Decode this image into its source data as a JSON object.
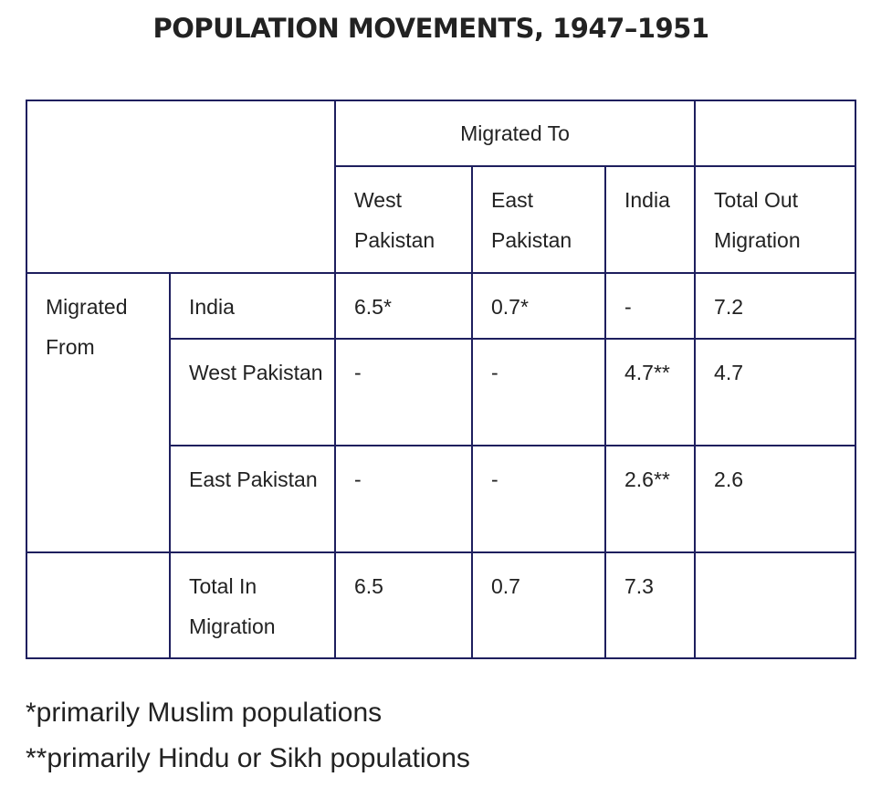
{
  "title": "POPULATION MOVEMENTS, 1947–1951",
  "table": {
    "migrated_to_label": "Migrated To",
    "migrated_from_label": "Migrated From",
    "columns": [
      "West Pakistan",
      "East Pakistan",
      "India",
      "Total Out Migration"
    ],
    "rows": [
      {
        "label": "India",
        "values": [
          "6.5*",
          "0.7*",
          "-",
          "7.2"
        ]
      },
      {
        "label": "West Pakistan",
        "values": [
          "-",
          "-",
          "4.7**",
          "4.7"
        ]
      },
      {
        "label": "East Pakistan",
        "values": [
          "-",
          "-",
          "2.6**",
          "2.6"
        ]
      }
    ],
    "total_in": {
      "label": "Total In Migration",
      "values": [
        "6.5",
        "0.7",
        "7.3",
        ""
      ]
    }
  },
  "footnotes": [
    "*primarily Muslim populations",
    "**primarily Hindu or Sikh populations"
  ]
}
